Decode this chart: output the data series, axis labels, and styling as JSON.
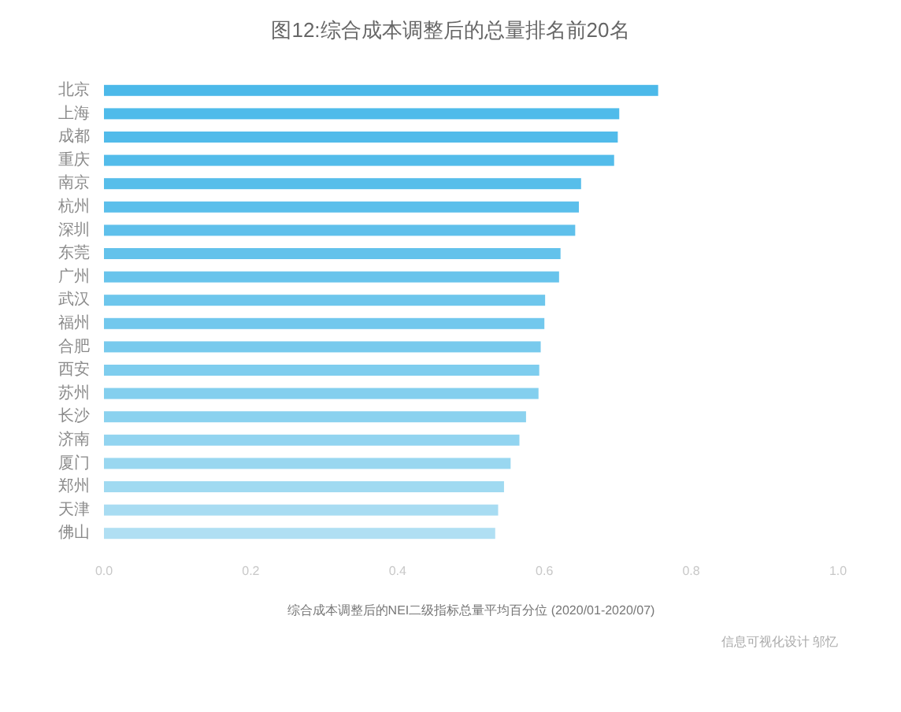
{
  "chart_data": {
    "type": "bar",
    "orientation": "horizontal",
    "title": "图12:综合成本调整后的总量排名前20名",
    "xlabel": "综合成本调整后的NEI二级指标总量平均百分位 (2020/01-2020/07)",
    "categories": [
      "北京",
      "上海",
      "成都",
      "重庆",
      "南京",
      "杭州",
      "深圳",
      "东莞",
      "广州",
      "武汉",
      "福州",
      "合肥",
      "西安",
      "苏州",
      "长沙",
      "济南",
      "厦门",
      "郑州",
      "天津",
      "佛山"
    ],
    "values": [
      0.755,
      0.702,
      0.7,
      0.695,
      0.65,
      0.647,
      0.642,
      0.622,
      0.62,
      0.601,
      0.6,
      0.595,
      0.593,
      0.592,
      0.575,
      0.566,
      0.554,
      0.545,
      0.537,
      0.533
    ],
    "colors": [
      "#4cb9e9",
      "#4fbbea",
      "#51bbea",
      "#53bcea",
      "#57beea",
      "#5bbfeb",
      "#5fc0eb",
      "#63c2eb",
      "#68c4ec",
      "#6dc6ec",
      "#72c8ed",
      "#78caed",
      "#7ecdee",
      "#84cfee",
      "#8bd2ef",
      "#92d4f0",
      "#99d7f0",
      "#a0daf1",
      "#a8dcf2",
      "#b0dff3"
    ],
    "xlim": [
      0,
      1
    ],
    "xticks": [
      {
        "value": 0,
        "label": "0.0"
      },
      0.2,
      0.4,
      0.6,
      0.8,
      {
        "value": 1,
        "label": "1.0"
      }
    ],
    "annotations": [
      "信息可视化设计 邬忆"
    ]
  }
}
